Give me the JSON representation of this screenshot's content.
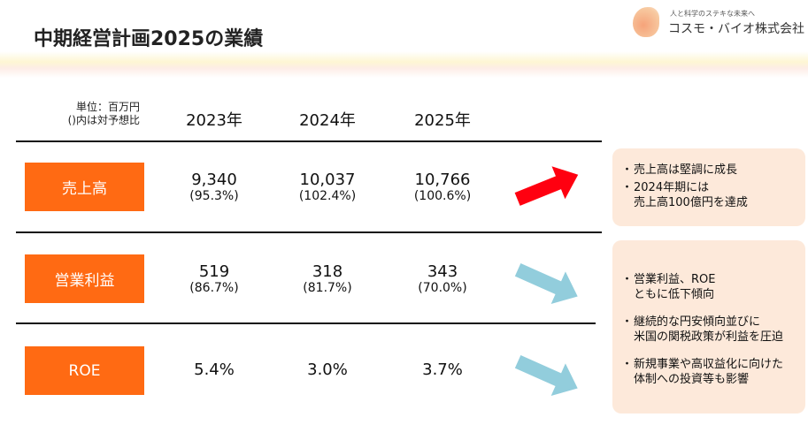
{
  "title": "中期経営計画2025の業績",
  "logo": {
    "tagline": "人と科学のステキな未来へ",
    "company": "コスモ・バイオ株式会社"
  },
  "unit": {
    "line1": "単位：百万円",
    "line2": "()内は対予想比"
  },
  "years": [
    "2023年",
    "2024年",
    "2025年"
  ],
  "rows": [
    {
      "label": "売上高",
      "values": [
        "9,340",
        "10,037",
        "10,766"
      ],
      "ratios": [
        "(95.3%)",
        "(102.4%)",
        "(100.6%)"
      ],
      "trend": "up",
      "trend_color": "#ff0010"
    },
    {
      "label": "営業利益",
      "values": [
        "519",
        "318",
        "343"
      ],
      "ratios": [
        "(86.7%)",
        "(81.7%)",
        "(70.0%)"
      ],
      "trend": "down",
      "trend_color": "#92cddc"
    },
    {
      "label": "ROE",
      "values": [
        "5.4%",
        "3.0%",
        "3.7%"
      ],
      "ratios": [
        "",
        "",
        ""
      ],
      "trend": "down",
      "trend_color": "#92cddc"
    }
  ],
  "notes": {
    "sales": [
      "売上高は堅調に成長",
      "2024年期には\n売上高100億円を達成"
    ],
    "profit": [
      "営業利益、ROE\nともに低下傾向",
      "継続的な円安傾向並びに\n米国の関税政策が利益を圧迫",
      "新規事業や高収益化に向けた\n体制への投資等も影響"
    ]
  },
  "bullet": "・",
  "colors": {
    "label_bg": "#ff6a13",
    "note_bg": "#fde9da"
  }
}
